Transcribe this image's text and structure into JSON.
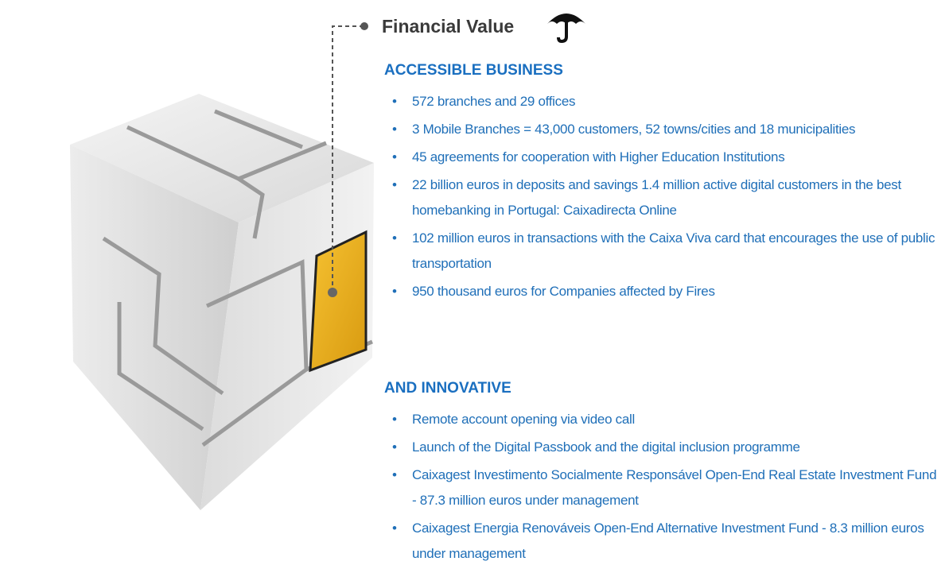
{
  "header": {
    "title": "Financial Value"
  },
  "sections": [
    {
      "heading": "ACCESSIBLE BUSINESS",
      "items": [
        "572 branches and 29 offices",
        "3 Mobile Branches = 43,000 customers, 52 towns/cities and 18 municipalities",
        "45 agreements for cooperation with Higher Education Institutions",
        "22 billion euros in deposits and savings 1.4 million active digital customers in the best homebanking in Portugal: Caixadirecta Online",
        "102 million euros in transactions with the Caixa Viva card that encourages the use of public transportation",
        "950 thousand euros for Companies affected by Fires"
      ]
    },
    {
      "heading": "AND INNOVATIVE",
      "items": [
        " Remote account opening via video call",
        "Launch of the Digital Passbook and the digital inclusion programme",
        "Caixagest Investimento Socialmente Responsável Open-End Real Estate Investment Fund - 87.3 million euros under management",
        "Caixagest Energia Renováveis Open-End Alternative Investment Fund - 8.3 million euros under management"
      ]
    }
  ]
}
